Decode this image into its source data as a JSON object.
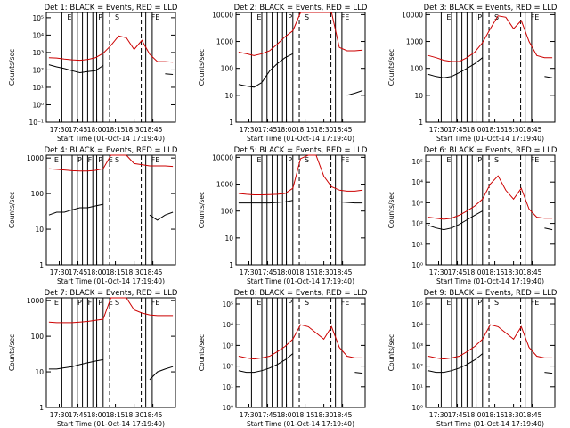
{
  "figure": {
    "time_ticks": [
      "17:30",
      "17:45",
      "18:00",
      "18:15",
      "18:30",
      "18:45"
    ],
    "colors": {
      "events": "#000000",
      "lld": "#cc0000",
      "axes": "#000000"
    }
  },
  "chart_data": [
    {
      "type": "line",
      "title": "Det 1: BLACK = Events, RED = LLD",
      "xlabel": "Start Time (01-Oct-14 17:19:40)",
      "ylabel": "Counts/sec",
      "x": [
        "17:30",
        "17:35",
        "17:40",
        "17:45",
        "17:50",
        "17:55",
        "18:00",
        "18:05",
        "18:10",
        "18:15",
        "18:20",
        "18:25",
        "18:30",
        "18:35",
        "18:40",
        "18:45",
        "18:50"
      ],
      "ylim": [
        0.1,
        200000
      ],
      "ylog": true,
      "yticks": [
        "10⁻¹",
        "10⁰",
        "10¹",
        "10²",
        "10³",
        "10⁴",
        "10⁵"
      ],
      "top_labels": [
        "E",
        "P",
        "S",
        "FE"
      ],
      "series": [
        {
          "name": "Events",
          "color": "#000000",
          "values": [
            200,
            150,
            120,
            90,
            70,
            80,
            90,
            180,
            null,
            null,
            null,
            null,
            null,
            null,
            null,
            60,
            55
          ]
        },
        {
          "name": "LLD",
          "color": "#cc0000",
          "values": [
            500,
            480,
            420,
            380,
            360,
            400,
            500,
            900,
            2500,
            9000,
            7000,
            1500,
            5000,
            800,
            300,
            300,
            280
          ]
        }
      ]
    },
    {
      "type": "line",
      "title": "Det 2: BLACK = Events, RED = LLD",
      "xlabel": "Start Time (01-Oct-14 17:19:40)",
      "ylabel": "Counts/sec",
      "x": [
        "17:30",
        "17:35",
        "17:40",
        "17:45",
        "17:50",
        "17:55",
        "18:00",
        "18:05",
        "18:10",
        "18:15",
        "18:20",
        "18:25",
        "18:30",
        "18:35",
        "18:40",
        "18:45",
        "18:50"
      ],
      "ylim": [
        1,
        12000
      ],
      "ylog": true,
      "yticks": [
        "1",
        "10",
        "100",
        "1000",
        "10000"
      ],
      "top_labels": [
        "E",
        "P",
        "S",
        "FE"
      ],
      "series": [
        {
          "name": "Events",
          "color": "#000000",
          "values": [
            25,
            22,
            20,
            30,
            80,
            150,
            250,
            350,
            null,
            null,
            null,
            null,
            null,
            null,
            10,
            12,
            15
          ]
        },
        {
          "name": "LLD",
          "color": "#cc0000",
          "values": [
            400,
            350,
            300,
            350,
            450,
            800,
            1500,
            2500,
            12000,
            12000,
            12000,
            12000,
            12000,
            600,
            450,
            450,
            480
          ]
        }
      ]
    },
    {
      "type": "line",
      "title": "Det 3: BLACK = Events, RED = LLD",
      "xlabel": "Start Time (01-Oct-14 17:19:40)",
      "ylabel": "Counts/sec",
      "x": [
        "17:30",
        "17:35",
        "17:40",
        "17:45",
        "17:50",
        "17:55",
        "18:00",
        "18:05",
        "18:10",
        "18:15",
        "18:20",
        "18:25",
        "18:30",
        "18:35",
        "18:40",
        "18:45",
        "18:50"
      ],
      "ylim": [
        1,
        12000
      ],
      "ylog": true,
      "yticks": [
        "1",
        "10",
        "100",
        "1000",
        "10000"
      ],
      "top_labels": [
        "E",
        "P",
        "S",
        "FE"
      ],
      "series": [
        {
          "name": "Events",
          "color": "#000000",
          "values": [
            60,
            50,
            45,
            50,
            70,
            100,
            150,
            250,
            null,
            null,
            null,
            null,
            null,
            null,
            null,
            50,
            45
          ]
        },
        {
          "name": "LLD",
          "color": "#cc0000",
          "values": [
            300,
            250,
            200,
            180,
            180,
            250,
            400,
            900,
            3000,
            9000,
            8000,
            3000,
            6000,
            1000,
            300,
            250,
            250
          ]
        }
      ]
    },
    {
      "type": "line",
      "title": "Det 4: BLACK = Events, RED = LLD",
      "xlabel": "Start Time (01-Oct-14 17:19:40)",
      "ylabel": "Counts/sec",
      "x": [
        "17:30",
        "17:35",
        "17:40",
        "17:45",
        "17:50",
        "17:55",
        "18:00",
        "18:05",
        "18:10",
        "18:15",
        "18:20",
        "18:25",
        "18:30",
        "18:35",
        "18:40",
        "18:45",
        "18:50"
      ],
      "ylim": [
        1,
        1200
      ],
      "ylog": true,
      "yticks": [
        "1",
        "10",
        "100",
        "1000"
      ],
      "top_labels": [
        "E",
        "P",
        "F",
        "P",
        "E",
        "S",
        "FE"
      ],
      "series": [
        {
          "name": "Events",
          "color": "#000000",
          "values": [
            25,
            30,
            30,
            35,
            40,
            40,
            45,
            50,
            null,
            null,
            null,
            null,
            null,
            25,
            18,
            25,
            30
          ]
        },
        {
          "name": "LLD",
          "color": "#cc0000",
          "values": [
            500,
            480,
            460,
            440,
            430,
            430,
            450,
            500,
            1200,
            1200,
            1200,
            700,
            650,
            600,
            600,
            600,
            580
          ]
        }
      ]
    },
    {
      "type": "line",
      "title": "Det 5: BLACK = Events, RED = LLD",
      "xlabel": "Start Time (01-Oct-14 17:19:40)",
      "ylabel": "Counts/sec",
      "x": [
        "17:30",
        "17:35",
        "17:40",
        "17:45",
        "17:50",
        "17:55",
        "18:00",
        "18:05",
        "18:10",
        "18:15",
        "18:20",
        "18:25",
        "18:30",
        "18:35",
        "18:40",
        "18:45",
        "18:50"
      ],
      "ylim": [
        1,
        12000
      ],
      "ylog": true,
      "yticks": [
        "1",
        "10",
        "100",
        "1000",
        "10000"
      ],
      "top_labels": [
        "E",
        "P",
        "S",
        "FE"
      ],
      "series": [
        {
          "name": "Events",
          "color": "#000000",
          "values": [
            200,
            200,
            200,
            200,
            200,
            210,
            220,
            250,
            null,
            null,
            null,
            null,
            null,
            220,
            210,
            200,
            200
          ]
        },
        {
          "name": "LLD",
          "color": "#cc0000",
          "values": [
            450,
            420,
            400,
            400,
            410,
            420,
            450,
            700,
            9000,
            12000,
            12000,
            2000,
            800,
            600,
            550,
            550,
            600
          ]
        }
      ]
    },
    {
      "type": "line",
      "title": "Det 6: BLACK = Events, RED = LLD",
      "xlabel": "Start Time (01-Oct-14 17:19:40)",
      "ylabel": "Counts/sec",
      "x": [
        "17:30",
        "17:35",
        "17:40",
        "17:45",
        "17:50",
        "17:55",
        "18:00",
        "18:05",
        "18:10",
        "18:15",
        "18:20",
        "18:25",
        "18:30",
        "18:35",
        "18:40",
        "18:45",
        "18:50"
      ],
      "ylim": [
        1,
        200000
      ],
      "ylog": true,
      "yticks": [
        "10⁰",
        "10¹",
        "10²",
        "10³",
        "10⁴",
        "10⁵"
      ],
      "top_labels": [
        "E",
        "P",
        "S",
        "FE"
      ],
      "series": [
        {
          "name": "Events",
          "color": "#000000",
          "values": [
            80,
            60,
            50,
            60,
            90,
            150,
            250,
            400,
            null,
            null,
            null,
            null,
            null,
            null,
            null,
            60,
            50
          ]
        },
        {
          "name": "LLD",
          "color": "#cc0000",
          "values": [
            200,
            180,
            160,
            180,
            250,
            400,
            700,
            1500,
            8000,
            20000,
            4000,
            1500,
            5000,
            500,
            200,
            180,
            180
          ]
        }
      ]
    },
    {
      "type": "line",
      "title": "Det 7: BLACK = Events, RED = LLD",
      "xlabel": "Start Time (01-Oct-14 17:19:40)",
      "ylabel": "Counts/sec",
      "x": [
        "17:30",
        "17:35",
        "17:40",
        "17:45",
        "17:50",
        "17:55",
        "18:00",
        "18:05",
        "18:10",
        "18:15",
        "18:20",
        "18:25",
        "18:30",
        "18:35",
        "18:40",
        "18:45",
        "18:50"
      ],
      "ylim": [
        1,
        1200
      ],
      "ylog": true,
      "yticks": [
        "1",
        "10",
        "100",
        "1000"
      ],
      "top_labels": [
        "E",
        "P",
        "F",
        "P",
        "E",
        "S",
        "FE"
      ],
      "series": [
        {
          "name": "Events",
          "color": "#000000",
          "values": [
            12,
            12,
            13,
            14,
            16,
            18,
            20,
            22,
            null,
            null,
            null,
            null,
            null,
            6,
            10,
            12,
            14
          ]
        },
        {
          "name": "LLD",
          "color": "#cc0000",
          "values": [
            250,
            240,
            240,
            240,
            250,
            260,
            280,
            300,
            1200,
            1200,
            1200,
            550,
            450,
            400,
            380,
            380,
            380
          ]
        }
      ]
    },
    {
      "type": "line",
      "title": "Det 8: BLACK = Events, RED = LLD",
      "xlabel": "Start Time (01-Oct-14 17:19:40)",
      "ylabel": "Counts/sec",
      "x": [
        "17:30",
        "17:35",
        "17:40",
        "17:45",
        "17:50",
        "17:55",
        "18:00",
        "18:05",
        "18:10",
        "18:15",
        "18:20",
        "18:25",
        "18:30",
        "18:35",
        "18:40",
        "18:45",
        "18:50"
      ],
      "ylim": [
        1,
        200000
      ],
      "ylog": true,
      "yticks": [
        "10⁰",
        "10¹",
        "10²",
        "10³",
        "10⁴",
        "10⁵"
      ],
      "top_labels": [
        "E",
        "P",
        "S",
        "FE"
      ],
      "series": [
        {
          "name": "Events",
          "color": "#000000",
          "values": [
            60,
            50,
            50,
            60,
            80,
            120,
            200,
            400,
            null,
            null,
            null,
            null,
            null,
            null,
            null,
            50,
            45
          ]
        },
        {
          "name": "LLD",
          "color": "#cc0000",
          "values": [
            300,
            250,
            220,
            250,
            300,
            500,
            900,
            2000,
            10000,
            8000,
            4000,
            2000,
            8000,
            800,
            300,
            250,
            250
          ]
        }
      ]
    },
    {
      "type": "line",
      "title": "Det 9: BLACK = Events, RED = LLD",
      "xlabel": "Start Time (01-Oct-14 17:19:40)",
      "ylabel": "Counts/sec",
      "x": [
        "17:30",
        "17:35",
        "17:40",
        "17:45",
        "17:50",
        "17:55",
        "18:00",
        "18:05",
        "18:10",
        "18:15",
        "18:20",
        "18:25",
        "18:30",
        "18:35",
        "18:40",
        "18:45",
        "18:50"
      ],
      "ylim": [
        1,
        200000
      ],
      "ylog": true,
      "yticks": [
        "10⁰",
        "10¹",
        "10²",
        "10³",
        "10⁴",
        "10⁵"
      ],
      "top_labels": [
        "E",
        "P",
        "S",
        "FE"
      ],
      "series": [
        {
          "name": "Events",
          "color": "#000000",
          "values": [
            60,
            50,
            50,
            60,
            80,
            120,
            200,
            400,
            null,
            null,
            null,
            null,
            null,
            null,
            null,
            50,
            45
          ]
        },
        {
          "name": "LLD",
          "color": "#cc0000",
          "values": [
            300,
            250,
            220,
            250,
            300,
            500,
            900,
            2000,
            10000,
            8000,
            4000,
            2000,
            8000,
            800,
            300,
            250,
            250
          ]
        }
      ]
    }
  ]
}
